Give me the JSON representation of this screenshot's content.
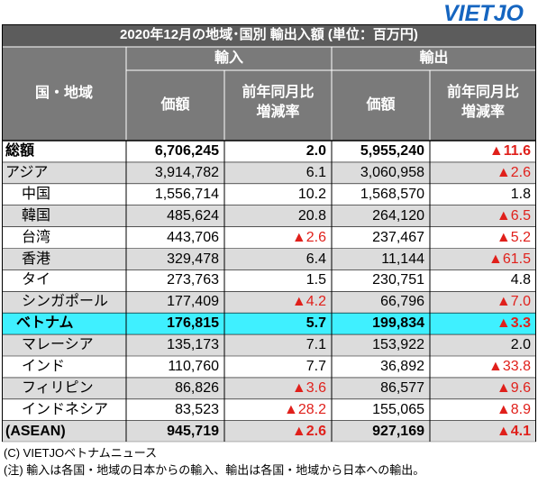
{
  "logo": "VIETJO",
  "table": {
    "title": "2020年12月の地域･国別 輸出入額 (単位：百万円)",
    "corner": "国・地域",
    "import_label": "輸入",
    "export_label": "輸出",
    "value_label": "価額",
    "yoy_label_1": "前年同月比",
    "yoy_label_2": "増減率"
  },
  "chart_data": {
    "type": "table",
    "title": "2020年12月の地域･国別 輸出入額 (単位：百万円)",
    "columns": [
      "国・地域",
      "輸入 価額",
      "輸入 前年同月比増減率",
      "輸出 価額",
      "輸出 前年同月比増減率"
    ],
    "rows": [
      {
        "name": "総額",
        "imp_val": "6,706,245",
        "imp_yoy": "2.0",
        "exp_val": "5,955,240",
        "exp_yoy": "▲11.6",
        "style": "total"
      },
      {
        "name": "アジア",
        "imp_val": "3,914,782",
        "imp_yoy": "6.1",
        "exp_val": "3,060,958",
        "exp_yoy": "▲2.6",
        "style": "region"
      },
      {
        "name": "中国",
        "imp_val": "1,556,714",
        "imp_yoy": "10.2",
        "exp_val": "1,568,570",
        "exp_yoy": "1.8",
        "style": "country"
      },
      {
        "name": "韓国",
        "imp_val": "485,624",
        "imp_yoy": "20.8",
        "exp_val": "264,120",
        "exp_yoy": "▲6.5",
        "style": "country"
      },
      {
        "name": "台湾",
        "imp_val": "443,706",
        "imp_yoy": "▲2.6",
        "exp_val": "237,467",
        "exp_yoy": "▲5.2",
        "style": "country"
      },
      {
        "name": "香港",
        "imp_val": "329,478",
        "imp_yoy": "6.4",
        "exp_val": "11,144",
        "exp_yoy": "▲61.5",
        "style": "country"
      },
      {
        "name": "タイ",
        "imp_val": "273,763",
        "imp_yoy": "1.5",
        "exp_val": "230,751",
        "exp_yoy": "4.8",
        "style": "country"
      },
      {
        "name": "シンガポール",
        "imp_val": "177,409",
        "imp_yoy": "▲4.2",
        "exp_val": "66,796",
        "exp_yoy": "▲7.0",
        "style": "country"
      },
      {
        "name": "ベトナム",
        "imp_val": "176,815",
        "imp_yoy": "5.7",
        "exp_val": "199,834",
        "exp_yoy": "▲3.3",
        "style": "highlight"
      },
      {
        "name": "マレーシア",
        "imp_val": "135,173",
        "imp_yoy": "7.1",
        "exp_val": "153,922",
        "exp_yoy": "2.0",
        "style": "country"
      },
      {
        "name": "インド",
        "imp_val": "110,760",
        "imp_yoy": "7.7",
        "exp_val": "36,892",
        "exp_yoy": "▲33.8",
        "style": "country"
      },
      {
        "name": "フィリピン",
        "imp_val": "86,826",
        "imp_yoy": "▲3.6",
        "exp_val": "86,577",
        "exp_yoy": "▲9.6",
        "style": "country"
      },
      {
        "name": "インドネシア",
        "imp_val": "83,523",
        "imp_yoy": "▲28.2",
        "exp_val": "155,065",
        "exp_yoy": "▲8.9",
        "style": "country"
      },
      {
        "name": "(ASEAN)",
        "imp_val": "945,719",
        "imp_yoy": "▲2.6",
        "exp_val": "927,169",
        "exp_yoy": "▲4.1",
        "style": "total"
      }
    ]
  },
  "notes": {
    "source": "(C) VIETJOベトナムニュース",
    "note": "(注) 輸入は各国・地域の日本からの輸入、輸出は各国・地域から日本への輸出。"
  },
  "colors": {
    "header_bg": "#7a7a7a",
    "title_bg": "#5c5c5c",
    "stripe": "#dcdcdc",
    "highlight": "#3ff0ff",
    "negative": "#e0201b",
    "logo": "#1565c0"
  }
}
